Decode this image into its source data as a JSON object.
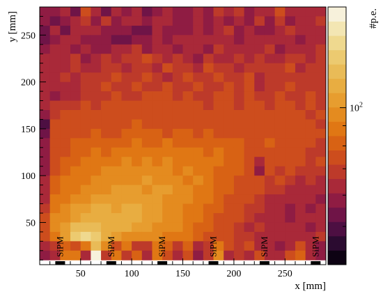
{
  "chart_data": {
    "type": "heatmap",
    "xlabel": "x [mm]",
    "ylabel": "y [mm]",
    "zlabel": "#p.e.",
    "xlim": [
      10,
      290
    ],
    "ylim": [
      5,
      280
    ],
    "x_bin_width": 10,
    "y_bin_width": 10,
    "x_ticks": [
      50,
      100,
      150,
      200,
      250
    ],
    "y_ticks": [
      50,
      100,
      150,
      200,
      250
    ],
    "z_scale": "log",
    "z_range": [
      40,
      180
    ],
    "z_ticks": [
      {
        "value": 100,
        "label": "10",
        "exponent": "2"
      }
    ],
    "colormap": [
      "#0d0213",
      "#2b0b30",
      "#4d0f42",
      "#6f1447",
      "#8f1c43",
      "#a92939",
      "#bd3a2a",
      "#cd4d1d",
      "#d86214",
      "#e07714",
      "#e48b1f",
      "#e79d2f",
      "#e8ad41",
      "#e9bb57",
      "#ecca70",
      "#efd98f",
      "#f3e6b3",
      "#f7f1db"
    ],
    "x": [
      15,
      25,
      35,
      45,
      55,
      65,
      75,
      85,
      95,
      105,
      115,
      125,
      135,
      145,
      155,
      165,
      175,
      185,
      195,
      205,
      215,
      225,
      235,
      245,
      255,
      265,
      275,
      285
    ],
    "y": [
      275,
      265,
      255,
      245,
      235,
      225,
      215,
      205,
      195,
      185,
      175,
      165,
      155,
      145,
      135,
      125,
      115,
      105,
      95,
      85,
      75,
      65,
      55,
      45,
      35,
      25,
      15
    ],
    "z": [
      [
        58,
        60,
        62,
        52,
        72,
        64,
        55,
        62,
        60,
        64,
        52,
        58,
        64,
        60,
        56,
        64,
        58,
        70,
        62,
        68,
        60,
        66,
        64,
        72,
        62,
        64,
        64,
        66
      ],
      [
        60,
        54,
        58,
        64,
        70,
        60,
        68,
        56,
        62,
        66,
        58,
        66,
        62,
        58,
        60,
        64,
        56,
        66,
        60,
        62,
        58,
        68,
        60,
        70,
        60,
        66,
        64,
        70
      ],
      [
        55,
        64,
        52,
        66,
        64,
        62,
        60,
        58,
        58,
        52,
        54,
        62,
        56,
        60,
        58,
        62,
        60,
        64,
        68,
        58,
        62,
        60,
        58,
        62,
        68,
        62,
        64,
        66
      ],
      [
        52,
        58,
        64,
        62,
        60,
        60,
        60,
        52,
        54,
        56,
        58,
        64,
        60,
        66,
        62,
        64,
        64,
        66,
        62,
        60,
        66,
        64,
        66,
        62,
        64,
        60,
        62,
        64
      ],
      [
        58,
        62,
        64,
        60,
        66,
        60,
        60,
        64,
        62,
        68,
        58,
        66,
        62,
        60,
        64,
        62,
        58,
        68,
        66,
        62,
        64,
        66,
        68,
        60,
        66,
        64,
        66,
        68
      ],
      [
        62,
        64,
        66,
        68,
        60,
        66,
        70,
        64,
        70,
        68,
        72,
        68,
        66,
        70,
        66,
        60,
        68,
        64,
        66,
        70,
        64,
        68,
        66,
        66,
        70,
        68,
        66,
        70
      ],
      [
        62,
        66,
        64,
        68,
        64,
        66,
        68,
        70,
        66,
        68,
        70,
        66,
        74,
        68,
        70,
        66,
        72,
        70,
        68,
        66,
        70,
        68,
        70,
        68,
        72,
        66,
        68,
        70
      ],
      [
        64,
        66,
        68,
        66,
        68,
        70,
        68,
        72,
        68,
        70,
        72,
        68,
        62,
        70,
        74,
        70,
        68,
        72,
        70,
        68,
        72,
        66,
        68,
        70,
        70,
        68,
        70,
        68
      ],
      [
        64,
        66,
        62,
        66,
        68,
        70,
        72,
        68,
        70,
        72,
        68,
        70,
        72,
        70,
        68,
        72,
        70,
        68,
        72,
        70,
        72,
        66,
        70,
        68,
        72,
        70,
        68,
        70
      ],
      [
        62,
        60,
        64,
        66,
        68,
        70,
        70,
        72,
        70,
        68,
        72,
        74,
        72,
        70,
        72,
        70,
        68,
        72,
        74,
        70,
        72,
        70,
        68,
        72,
        70,
        68,
        72,
        70
      ],
      [
        64,
        68,
        68,
        70,
        72,
        70,
        72,
        74,
        72,
        74,
        72,
        76,
        74,
        72,
        74,
        72,
        70,
        74,
        72,
        70,
        74,
        72,
        70,
        72,
        74,
        70,
        72,
        70
      ],
      [
        56,
        70,
        72,
        74,
        72,
        76,
        74,
        72,
        76,
        74,
        78,
        76,
        74,
        76,
        74,
        72,
        76,
        74,
        76,
        74,
        72,
        74,
        76,
        72,
        74,
        72,
        70,
        72
      ],
      [
        50,
        72,
        74,
        76,
        78,
        74,
        76,
        78,
        76,
        80,
        78,
        76,
        78,
        76,
        78,
        74,
        76,
        78,
        76,
        74,
        76,
        74,
        78,
        76,
        74,
        72,
        74,
        70
      ],
      [
        54,
        72,
        76,
        78,
        76,
        80,
        78,
        76,
        82,
        80,
        82,
        80,
        78,
        82,
        80,
        76,
        80,
        78,
        76,
        78,
        76,
        78,
        76,
        74,
        76,
        74,
        72,
        72
      ],
      [
        60,
        74,
        76,
        80,
        82,
        80,
        84,
        82,
        84,
        86,
        84,
        82,
        86,
        84,
        82,
        80,
        84,
        80,
        82,
        80,
        78,
        76,
        80,
        78,
        76,
        74,
        74,
        70
      ],
      [
        60,
        74,
        78,
        80,
        84,
        86,
        84,
        88,
        90,
        88,
        92,
        90,
        88,
        90,
        86,
        88,
        84,
        86,
        82,
        80,
        76,
        72,
        74,
        72,
        76,
        72,
        70,
        70
      ],
      [
        60,
        76,
        80,
        84,
        88,
        90,
        92,
        90,
        94,
        92,
        96,
        92,
        94,
        90,
        92,
        88,
        90,
        86,
        84,
        80,
        78,
        62,
        76,
        74,
        74,
        72,
        70,
        72
      ],
      [
        60,
        78,
        84,
        86,
        90,
        92,
        96,
        94,
        96,
        98,
        96,
        98,
        96,
        92,
        94,
        90,
        88,
        84,
        82,
        80,
        76,
        58,
        74,
        70,
        72,
        70,
        68,
        68
      ],
      [
        62,
        80,
        86,
        88,
        92,
        96,
        94,
        98,
        100,
        98,
        102,
        100,
        98,
        96,
        90,
        94,
        88,
        84,
        82,
        78,
        76,
        72,
        70,
        72,
        70,
        66,
        68,
        66
      ],
      [
        64,
        82,
        86,
        90,
        94,
        98,
        100,
        102,
        104,
        102,
        100,
        104,
        102,
        98,
        94,
        90,
        86,
        84,
        80,
        76,
        74,
        72,
        70,
        68,
        66,
        64,
        66,
        64
      ],
      [
        66,
        86,
        92,
        96,
        100,
        104,
        106,
        104,
        108,
        106,
        104,
        102,
        100,
        98,
        96,
        92,
        88,
        82,
        78,
        74,
        72,
        68,
        66,
        64,
        62,
        64,
        62,
        60
      ],
      [
        70,
        90,
        96,
        104,
        108,
        110,
        112,
        108,
        112,
        110,
        106,
        102,
        100,
        96,
        90,
        88,
        84,
        82,
        78,
        74,
        70,
        68,
        66,
        62,
        60,
        62,
        60,
        64
      ],
      [
        72,
        94,
        100,
        108,
        116,
        118,
        112,
        116,
        118,
        110,
        106,
        102,
        98,
        94,
        90,
        86,
        82,
        78,
        74,
        72,
        70,
        66,
        64,
        62,
        60,
        62,
        62,
        64
      ],
      [
        76,
        96,
        104,
        120,
        128,
        124,
        118,
        116,
        110,
        106,
        102,
        98,
        96,
        94,
        88,
        84,
        80,
        78,
        74,
        70,
        66,
        68,
        62,
        66,
        62,
        64,
        60,
        66
      ],
      [
        78,
        90,
        106,
        140,
        150,
        138,
        110,
        106,
        100,
        98,
        96,
        94,
        92,
        90,
        86,
        82,
        78,
        76,
        72,
        70,
        68,
        66,
        64,
        64,
        62,
        66,
        62,
        68
      ],
      [
        64,
        70,
        84,
        72,
        90,
        120,
        100,
        76,
        86,
        70,
        68,
        90,
        84,
        70,
        84,
        62,
        68,
        88,
        72,
        68,
        72,
        64,
        66,
        60,
        64,
        72,
        66,
        60
      ],
      [
        60,
        64,
        90,
        86,
        64,
        170,
        68,
        92,
        70,
        80,
        62,
        88,
        72,
        64,
        74,
        58,
        70,
        98,
        64,
        70,
        62,
        74,
        64,
        62,
        72,
        84,
        66,
        58
      ]
    ],
    "annotations": [
      {
        "label": "SiPM",
        "x": 30
      },
      {
        "label": "SiPM",
        "x": 80
      },
      {
        "label": "SiPM",
        "x": 130
      },
      {
        "label": "SiPM",
        "x": 180
      },
      {
        "label": "SiPM",
        "x": 230
      },
      {
        "label": "SiPM",
        "x": 280
      }
    ]
  }
}
